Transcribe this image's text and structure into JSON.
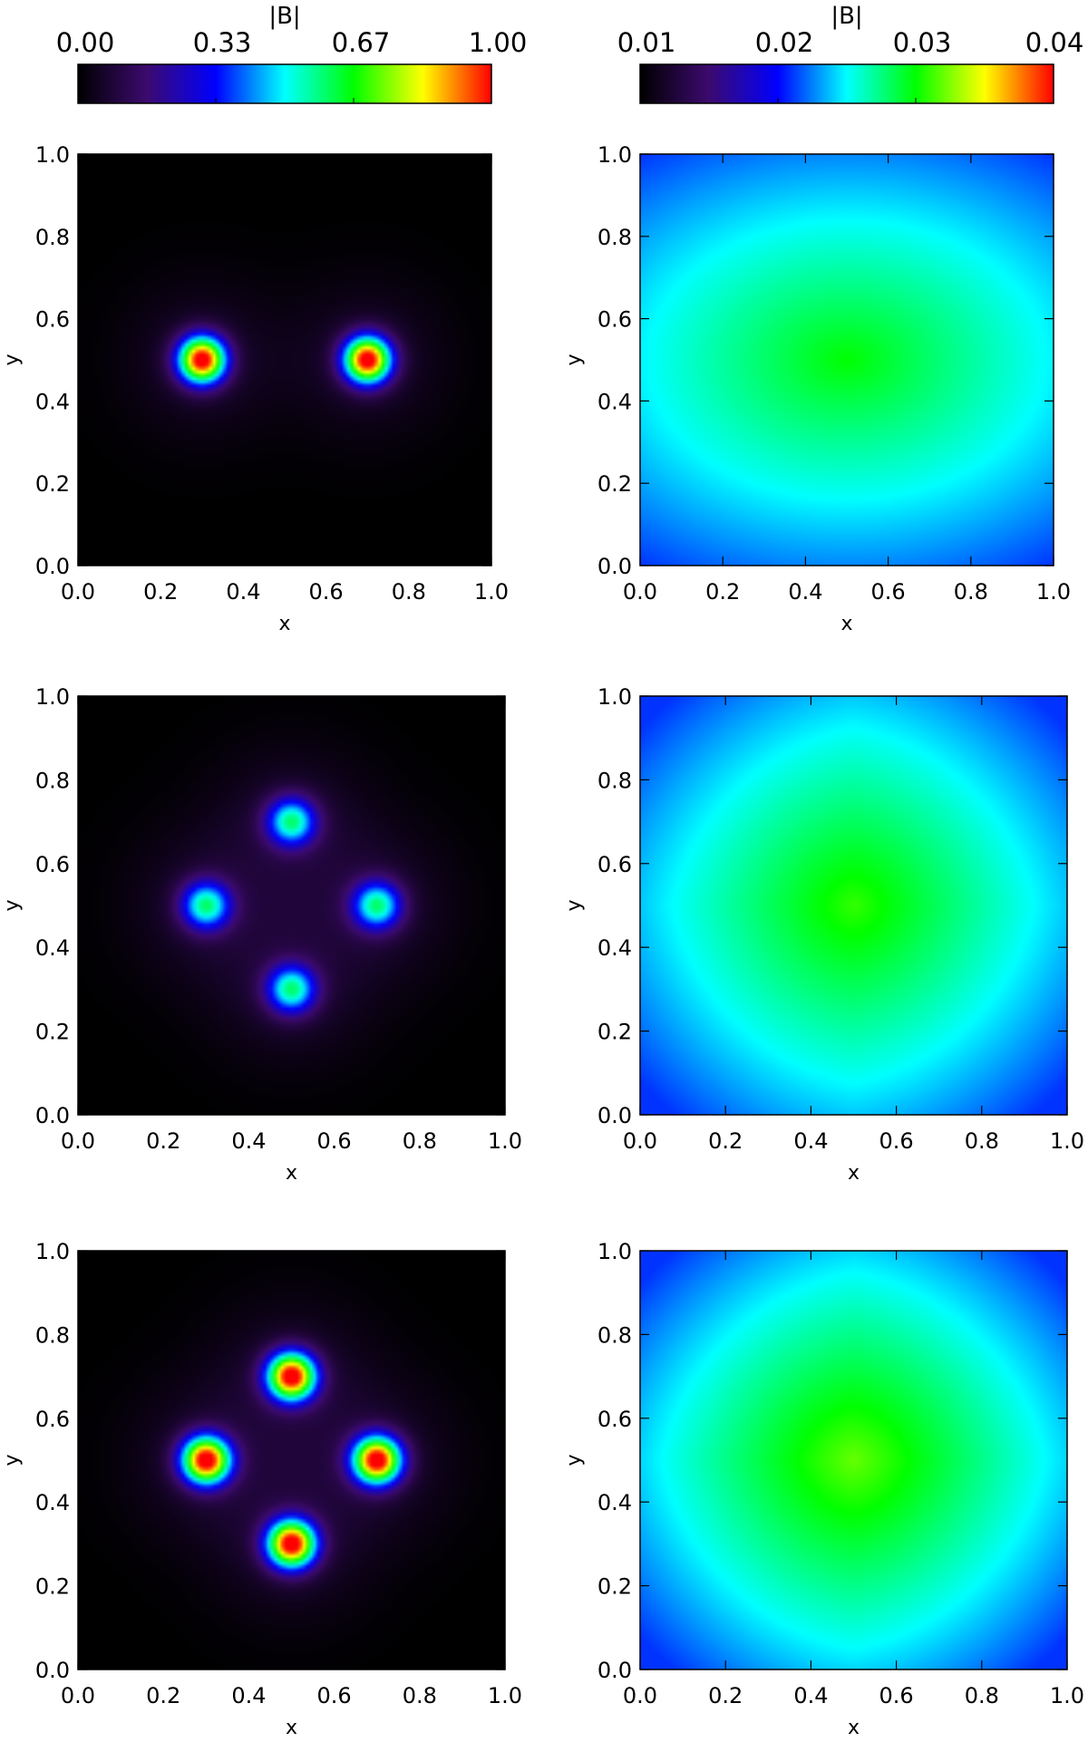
{
  "chart_data": [
    {
      "type": "heatmap",
      "panel": "top-left",
      "colorbar": "left",
      "xlabel": "x",
      "ylabel": "y",
      "xlim": [
        0,
        1
      ],
      "ylim": [
        0,
        1
      ],
      "xticks": [
        "0.0",
        "0.2",
        "0.4",
        "0.6",
        "0.8",
        "1.0"
      ],
      "yticks": [
        "0.0",
        "0.2",
        "0.4",
        "0.6",
        "0.8",
        "1.0"
      ],
      "sources": [
        {
          "x": 0.3,
          "y": 0.5,
          "peak": 1.0
        },
        {
          "x": 0.7,
          "y": 0.5,
          "peak": 1.0
        }
      ]
    },
    {
      "type": "heatmap",
      "panel": "top-right",
      "colorbar": "right",
      "xlabel": "x",
      "ylabel": "y",
      "xlim": [
        0,
        1
      ],
      "ylim": [
        0,
        1
      ],
      "xticks": [
        "0.0",
        "0.2",
        "0.4",
        "0.6",
        "0.8",
        "1.0"
      ],
      "yticks": [
        "0.0",
        "0.2",
        "0.4",
        "0.6",
        "0.8",
        "1.0"
      ],
      "center_value": 0.03,
      "corner_value": 0.021
    },
    {
      "type": "heatmap",
      "panel": "middle-left",
      "colorbar": "left",
      "xlabel": "x",
      "ylabel": "y",
      "xlim": [
        0,
        1
      ],
      "ylim": [
        0,
        1
      ],
      "xticks": [
        "0.0",
        "0.2",
        "0.4",
        "0.6",
        "0.8",
        "1.0"
      ],
      "yticks": [
        "0.0",
        "0.2",
        "0.4",
        "0.6",
        "0.8",
        "1.0"
      ],
      "sources": [
        {
          "x": 0.5,
          "y": 0.7,
          "peak": 0.52
        },
        {
          "x": 0.3,
          "y": 0.5,
          "peak": 0.52
        },
        {
          "x": 0.7,
          "y": 0.5,
          "peak": 0.52
        },
        {
          "x": 0.5,
          "y": 0.3,
          "peak": 0.52
        }
      ]
    },
    {
      "type": "heatmap",
      "panel": "middle-right",
      "colorbar": "right",
      "xlabel": "x",
      "ylabel": "y",
      "xlim": [
        0,
        1
      ],
      "ylim": [
        0,
        1
      ],
      "xticks": [
        "0.0",
        "0.2",
        "0.4",
        "0.6",
        "0.8",
        "1.0"
      ],
      "yticks": [
        "0.0",
        "0.2",
        "0.4",
        "0.6",
        "0.8",
        "1.0"
      ],
      "center_value": 0.031,
      "corner_value": 0.021
    },
    {
      "type": "heatmap",
      "panel": "bottom-left",
      "colorbar": "left",
      "xlabel": "x",
      "ylabel": "y",
      "xlim": [
        0,
        1
      ],
      "ylim": [
        0,
        1
      ],
      "xticks": [
        "0.0",
        "0.2",
        "0.4",
        "0.6",
        "0.8",
        "1.0"
      ],
      "yticks": [
        "0.0",
        "0.2",
        "0.4",
        "0.6",
        "0.8",
        "1.0"
      ],
      "sources": [
        {
          "x": 0.5,
          "y": 0.7,
          "peak": 1.0
        },
        {
          "x": 0.3,
          "y": 0.5,
          "peak": 1.0
        },
        {
          "x": 0.7,
          "y": 0.5,
          "peak": 1.0
        },
        {
          "x": 0.5,
          "y": 0.3,
          "peak": 1.0
        }
      ]
    },
    {
      "type": "heatmap",
      "panel": "bottom-right",
      "colorbar": "right",
      "xlabel": "x",
      "ylabel": "y",
      "xlim": [
        0,
        1
      ],
      "ylim": [
        0,
        1
      ],
      "xticks": [
        "0.0",
        "0.2",
        "0.4",
        "0.6",
        "0.8",
        "1.0"
      ],
      "yticks": [
        "0.0",
        "0.2",
        "0.4",
        "0.6",
        "0.8",
        "1.0"
      ],
      "center_value": 0.032,
      "corner_value": 0.021
    }
  ],
  "colorbars": [
    {
      "title": "|B|",
      "ticks": [
        "0.00",
        "0.33",
        "0.67",
        "1.00"
      ],
      "range": [
        0.0,
        1.0
      ]
    },
    {
      "title": "|B|",
      "ticks": [
        "0.01",
        "0.02",
        "0.03",
        "0.04"
      ],
      "range": [
        0.01,
        0.04
      ]
    }
  ],
  "colormap": [
    "#000000",
    "#3c0a6e",
    "#0000ff",
    "#00ffff",
    "#00ff00",
    "#ffff00",
    "#ff0000"
  ]
}
